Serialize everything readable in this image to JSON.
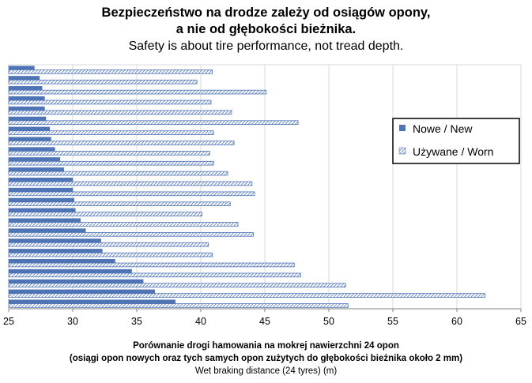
{
  "title_pl_line1": "Bezpieczeństwo na drodze zależy od osiągów opony,",
  "title_pl_line2": "a nie od głębokości bieżnika.",
  "title_en": "Safety is about tire performance, not tread depth.",
  "xlabel_line1": "Porównanie drogi hamowania na mokrej nawierzchni 24 opon",
  "xlabel_line2": "(osiągi opon nowych oraz tych samych opon zużytych do głębokości bieżnika około 2 mm)",
  "xlabel_line3": "Wet braking distance (24 tyres) (m)",
  "colors": {
    "new": "#4f74b5",
    "worn_fill": "#ffffff",
    "worn_stroke": "#4f74b5",
    "grid": "#d9d9d9",
    "axis": "#808080"
  },
  "chart_data": {
    "type": "bar",
    "orientation": "horizontal",
    "xlim": [
      25,
      65
    ],
    "xticks": [
      "25",
      "30",
      "35",
      "40",
      "45",
      "50",
      "55",
      "60",
      "65"
    ],
    "grid": true,
    "legend_position": "right",
    "series": [
      {
        "name": "Nowe / New",
        "pattern": "solid",
        "values": [
          27.0,
          27.4,
          27.6,
          27.8,
          27.8,
          27.9,
          28.2,
          28.3,
          28.6,
          29.0,
          29.3,
          30.0,
          30.0,
          30.1,
          30.2,
          30.6,
          31.0,
          32.2,
          32.3,
          33.3,
          34.6,
          35.5,
          36.4,
          38.0
        ]
      },
      {
        "name": "Używane / Worn",
        "pattern": "hatched",
        "values": [
          40.9,
          39.7,
          45.1,
          40.8,
          42.4,
          47.6,
          41.0,
          42.6,
          40.7,
          41.0,
          42.1,
          44.0,
          44.2,
          42.3,
          40.1,
          42.9,
          44.1,
          40.6,
          40.9,
          47.3,
          47.8,
          51.3,
          62.2,
          51.5
        ]
      }
    ]
  }
}
